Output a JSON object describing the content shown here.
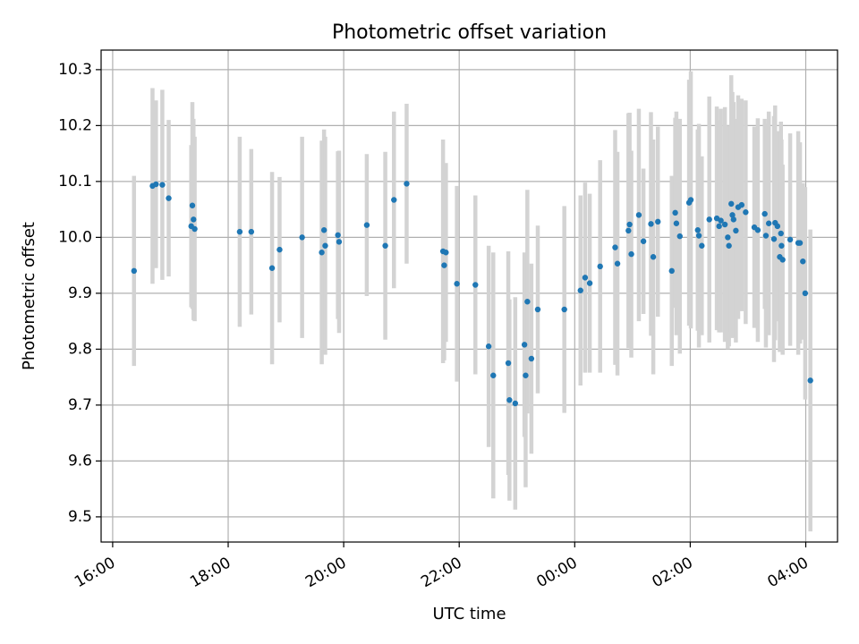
{
  "chart_data": {
    "type": "scatter",
    "title": "Photometric offset variation",
    "xlabel": "UTC time",
    "ylabel": "Photometric offset",
    "x_unit": "hours since 16:00 UTC",
    "xlim": [
      -0.2,
      12.55
    ],
    "ylim": [
      9.455,
      10.335
    ],
    "x_ticks": [
      {
        "x": 0,
        "label": "16:00"
      },
      {
        "x": 2,
        "label": "18:00"
      },
      {
        "x": 4,
        "label": "20:00"
      },
      {
        "x": 6,
        "label": "22:00"
      },
      {
        "x": 8,
        "label": "00:00"
      },
      {
        "x": 10,
        "label": "02:00"
      },
      {
        "x": 12,
        "label": "04:00"
      }
    ],
    "y_ticks": [
      {
        "y": 9.5,
        "label": "9.5"
      },
      {
        "y": 9.6,
        "label": "9.6"
      },
      {
        "y": 9.7,
        "label": "9.7"
      },
      {
        "y": 9.8,
        "label": "9.8"
      },
      {
        "y": 9.9,
        "label": "9.9"
      },
      {
        "y": 10.0,
        "label": "10.0"
      },
      {
        "y": 10.1,
        "label": "10.1"
      },
      {
        "y": 10.2,
        "label": "10.2"
      },
      {
        "y": 10.3,
        "label": "10.3"
      }
    ],
    "grid": true,
    "marker_color": "#1f77b4",
    "errorbar_color": "#d3d3d3",
    "points": [
      [
        0.37,
        9.94,
        0.17
      ],
      [
        0.69,
        10.092,
        0.175
      ],
      [
        0.75,
        10.095,
        0.15
      ],
      [
        0.86,
        10.094,
        0.17
      ],
      [
        0.97,
        10.07,
        0.14
      ],
      [
        1.36,
        10.02,
        0.145
      ],
      [
        1.38,
        10.057,
        0.185
      ],
      [
        1.4,
        10.032,
        0.18
      ],
      [
        1.42,
        10.015,
        0.165
      ],
      [
        2.2,
        10.01,
        0.17
      ],
      [
        2.4,
        10.01,
        0.148
      ],
      [
        2.76,
        9.945,
        0.172
      ],
      [
        2.89,
        9.978,
        0.13
      ],
      [
        3.28,
        10.0,
        0.18
      ],
      [
        3.62,
        9.973,
        0.2
      ],
      [
        3.66,
        10.013,
        0.18
      ],
      [
        3.68,
        9.985,
        0.195
      ],
      [
        3.9,
        10.004,
        0.15
      ],
      [
        3.92,
        9.992,
        0.163
      ],
      [
        4.4,
        10.022,
        0.127
      ],
      [
        4.72,
        9.985,
        0.168
      ],
      [
        4.87,
        10.067,
        0.158
      ],
      [
        5.09,
        10.096,
        0.143
      ],
      [
        5.72,
        9.975,
        0.2
      ],
      [
        5.74,
        9.95,
        0.17
      ],
      [
        5.77,
        9.973,
        0.16
      ],
      [
        5.96,
        9.917,
        0.175
      ],
      [
        6.28,
        9.915,
        0.16
      ],
      [
        6.51,
        9.805,
        0.18
      ],
      [
        6.59,
        9.753,
        0.22
      ],
      [
        6.85,
        9.775,
        0.2
      ],
      [
        6.87,
        9.709,
        0.18
      ],
      [
        6.97,
        9.703,
        0.19
      ],
      [
        7.13,
        9.808,
        0.165
      ],
      [
        7.15,
        9.753,
        0.2
      ],
      [
        7.18,
        9.885,
        0.2
      ],
      [
        7.25,
        9.783,
        0.17
      ],
      [
        7.36,
        9.871,
        0.15
      ],
      [
        7.82,
        9.871,
        0.185
      ],
      [
        8.1,
        9.905,
        0.17
      ],
      [
        8.18,
        9.928,
        0.17
      ],
      [
        8.26,
        9.918,
        0.16
      ],
      [
        8.44,
        9.948,
        0.19
      ],
      [
        8.7,
        9.982,
        0.21
      ],
      [
        8.74,
        9.953,
        0.2
      ],
      [
        8.93,
        10.012,
        0.21
      ],
      [
        8.95,
        10.023,
        0.2
      ],
      [
        8.98,
        9.97,
        0.185
      ],
      [
        9.11,
        10.04,
        0.19
      ],
      [
        9.19,
        9.993,
        0.13
      ],
      [
        9.32,
        10.024,
        0.2
      ],
      [
        9.36,
        9.965,
        0.21
      ],
      [
        9.44,
        10.028,
        0.17
      ],
      [
        9.68,
        9.94,
        0.17
      ],
      [
        9.74,
        10.044,
        0.17
      ],
      [
        9.76,
        10.025,
        0.2
      ],
      [
        9.82,
        10.002,
        0.21
      ],
      [
        9.98,
        10.062,
        0.22
      ],
      [
        10.01,
        10.067,
        0.23
      ],
      [
        10.13,
        10.013,
        0.18
      ],
      [
        10.15,
        10.003,
        0.2
      ],
      [
        10.2,
        9.985,
        0.16
      ],
      [
        10.33,
        10.032,
        0.22
      ],
      [
        10.46,
        10.034,
        0.2
      ],
      [
        10.5,
        10.02,
        0.19
      ],
      [
        10.53,
        10.03,
        0.2
      ],
      [
        10.6,
        10.023,
        0.21
      ],
      [
        10.65,
        10.0,
        0.2
      ],
      [
        10.67,
        9.985,
        0.18
      ],
      [
        10.71,
        10.06,
        0.23
      ],
      [
        10.73,
        10.04,
        0.22
      ],
      [
        10.75,
        10.032,
        0.21
      ],
      [
        10.79,
        10.012,
        0.2
      ],
      [
        10.83,
        10.054,
        0.2
      ],
      [
        10.89,
        10.058,
        0.19
      ],
      [
        10.96,
        10.045,
        0.2
      ],
      [
        11.11,
        10.018,
        0.18
      ],
      [
        11.17,
        10.013,
        0.2
      ],
      [
        11.29,
        10.042,
        0.17
      ],
      [
        11.31,
        10.003,
        0.2
      ],
      [
        11.36,
        10.025,
        0.2
      ],
      [
        11.45,
        9.997,
        0.22
      ],
      [
        11.47,
        10.026,
        0.21
      ],
      [
        11.51,
        10.02,
        0.17
      ],
      [
        11.55,
        9.965,
        0.17
      ],
      [
        11.57,
        10.007,
        0.2
      ],
      [
        11.58,
        9.985,
        0.19
      ],
      [
        11.6,
        9.96,
        0.17
      ],
      [
        11.73,
        9.996,
        0.19
      ],
      [
        11.87,
        9.99,
        0.2
      ],
      [
        11.9,
        9.99,
        0.18
      ],
      [
        11.95,
        9.957,
        0.14
      ],
      [
        11.99,
        9.9,
        0.19
      ],
      [
        12.08,
        9.744,
        0.27
      ]
    ]
  }
}
